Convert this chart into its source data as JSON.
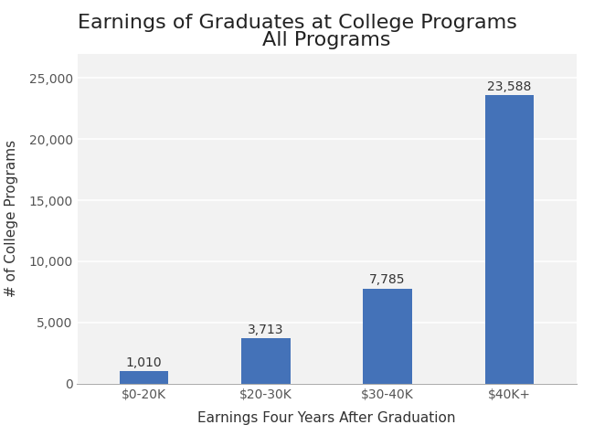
{
  "title_line1": "Earnings of Graduates at College Programs",
  "title_line2": "All Programs",
  "categories": [
    "$0-20K",
    "$20-30K",
    "$30-40K",
    "$40K+"
  ],
  "values": [
    1010,
    3713,
    7785,
    23588
  ],
  "bar_labels": [
    "1,010",
    "3,713",
    "7,785",
    "23,588"
  ],
  "bar_color": "#4472b8",
  "xlabel": "Earnings Four Years After Graduation",
  "ylabel": "# of College Programs",
  "ylim": [
    0,
    27000
  ],
  "yticks": [
    0,
    5000,
    10000,
    15000,
    20000,
    25000
  ],
  "background_color": "#ffffff",
  "plot_bg_color": "#f2f2f2",
  "title_fontsize": 16,
  "axis_label_fontsize": 11,
  "tick_fontsize": 10,
  "bar_label_fontsize": 10,
  "bar_width": 0.4,
  "grid_color": "#ffffff",
  "grid_linewidth": 1.2
}
